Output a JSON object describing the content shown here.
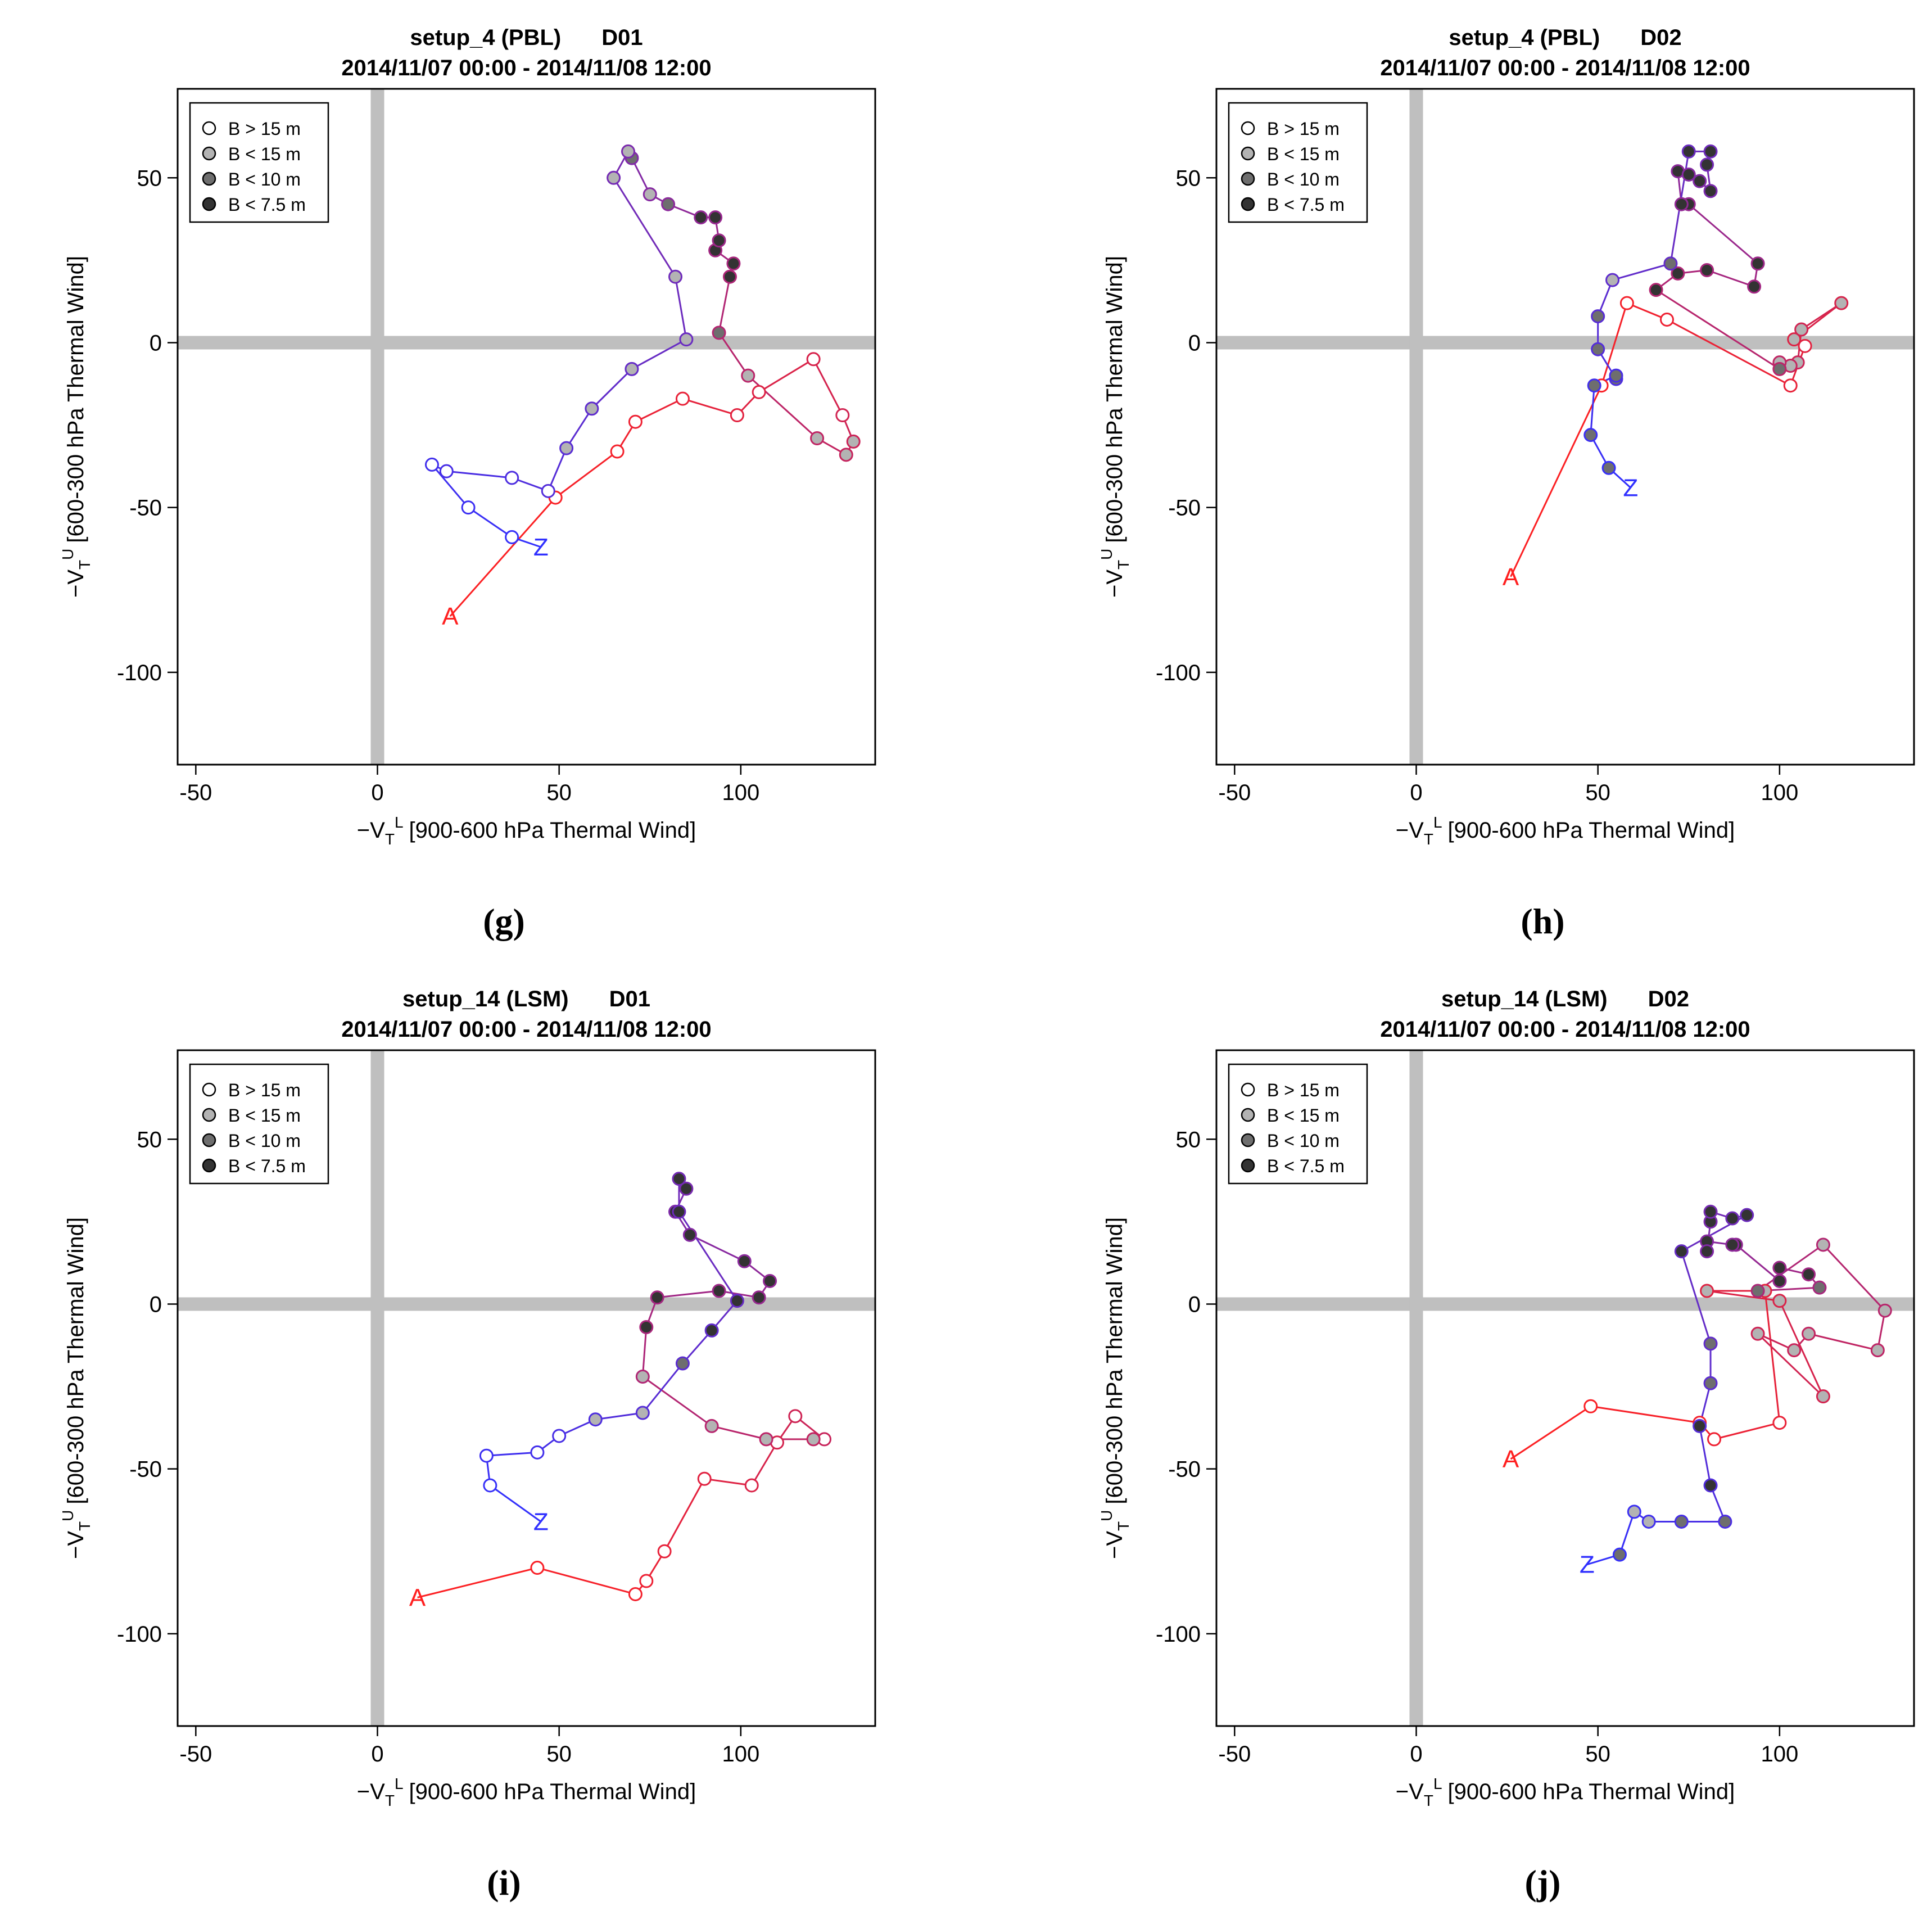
{
  "legend": {
    "entries": [
      {
        "label": "B > 15 m",
        "fill": "#ffffff"
      },
      {
        "label": "B < 15 m",
        "fill": "#b3b3b3"
      },
      {
        "label": "B < 10 m",
        "fill": "#6e6e6e"
      },
      {
        "label": "B < 7.5 m",
        "fill": "#333333"
      }
    ]
  },
  "colors": {
    "start": "#ff2020",
    "end": "#3030ff",
    "crosshair": "#bfbfbf"
  },
  "chart_data": [
    {
      "type": "line",
      "panel_label": "(g)",
      "title_setup": "setup_4 (PBL)",
      "title_domain": "D01",
      "subtitle": "2014/11/07 00:00 - 2014/11/08 12:00",
      "xlabel": "[900-600 hPa Thermal Wind]",
      "ylabel": "[600-300 hPa Thermal Wind]",
      "xlim": [
        -55,
        137
      ],
      "ylim": [
        -128,
        77
      ],
      "xticks": [
        -50,
        0,
        50,
        100
      ],
      "xtick_labels": [
        "-50",
        "0",
        "50",
        "100"
      ],
      "yticks": [
        -100,
        -50,
        0,
        50
      ],
      "ytick_labels": [
        "-100",
        "-50",
        "0",
        "50"
      ],
      "start_label": "A",
      "end_label": "Z",
      "points": [
        {
          "x": 20,
          "y": -83,
          "b": -1
        },
        {
          "x": 49,
          "y": -47,
          "b": 0
        },
        {
          "x": 66,
          "y": -33,
          "b": 0
        },
        {
          "x": 71,
          "y": -24,
          "b": 0
        },
        {
          "x": 84,
          "y": -17,
          "b": 0
        },
        {
          "x": 99,
          "y": -22,
          "b": 0
        },
        {
          "x": 105,
          "y": -15,
          "b": 0
        },
        {
          "x": 120,
          "y": -5,
          "b": 0
        },
        {
          "x": 128,
          "y": -22,
          "b": 0
        },
        {
          "x": 131,
          "y": -30,
          "b": 1
        },
        {
          "x": 129,
          "y": -34,
          "b": 1
        },
        {
          "x": 121,
          "y": -29,
          "b": 1
        },
        {
          "x": 102,
          "y": -10,
          "b": 1
        },
        {
          "x": 94,
          "y": 3,
          "b": 2
        },
        {
          "x": 97,
          "y": 20,
          "b": 3
        },
        {
          "x": 98,
          "y": 24,
          "b": 3
        },
        {
          "x": 93,
          "y": 28,
          "b": 3
        },
        {
          "x": 94,
          "y": 31,
          "b": 3
        },
        {
          "x": 93,
          "y": 38,
          "b": 3
        },
        {
          "x": 89,
          "y": 38,
          "b": 3
        },
        {
          "x": 80,
          "y": 42,
          "b": 2
        },
        {
          "x": 75,
          "y": 45,
          "b": 1
        },
        {
          "x": 70,
          "y": 56,
          "b": 2
        },
        {
          "x": 69,
          "y": 58,
          "b": 1
        },
        {
          "x": 65,
          "y": 50,
          "b": 1
        },
        {
          "x": 82,
          "y": 20,
          "b": 1
        },
        {
          "x": 85,
          "y": 1,
          "b": 1
        },
        {
          "x": 70,
          "y": -8,
          "b": 1
        },
        {
          "x": 59,
          "y": -20,
          "b": 1
        },
        {
          "x": 52,
          "y": -32,
          "b": 1
        },
        {
          "x": 47,
          "y": -45,
          "b": 0
        },
        {
          "x": 37,
          "y": -41,
          "b": 0
        },
        {
          "x": 19,
          "y": -39,
          "b": 0
        },
        {
          "x": 15,
          "y": -37,
          "b": 0
        },
        {
          "x": 25,
          "y": -50,
          "b": 0
        },
        {
          "x": 37,
          "y": -59,
          "b": 0
        },
        {
          "x": 45,
          "y": -62,
          "b": -1
        }
      ]
    },
    {
      "type": "line",
      "panel_label": "(h)",
      "title_setup": "setup_4 (PBL)",
      "title_domain": "D02",
      "subtitle": "2014/11/07 00:00 - 2014/11/08 12:00",
      "xlabel": "[900-600 hPa Thermal Wind]",
      "ylabel": "[600-300 hPa Thermal Wind]",
      "xlim": [
        -55,
        137
      ],
      "ylim": [
        -128,
        77
      ],
      "xticks": [
        -50,
        0,
        50,
        100
      ],
      "xtick_labels": [
        "-50",
        "0",
        "50",
        "100"
      ],
      "yticks": [
        -100,
        -50,
        0,
        50
      ],
      "ytick_labels": [
        "-100",
        "-50",
        "0",
        "50"
      ],
      "start_label": "A",
      "end_label": "Z",
      "points": [
        {
          "x": 26,
          "y": -71,
          "b": -1
        },
        {
          "x": 51,
          "y": -13,
          "b": 0
        },
        {
          "x": 58,
          "y": 12,
          "b": 0
        },
        {
          "x": 69,
          "y": 7,
          "b": 0
        },
        {
          "x": 103,
          "y": -13,
          "b": 0
        },
        {
          "x": 107,
          "y": -1,
          "b": 0
        },
        {
          "x": 104,
          "y": 1,
          "b": 1
        },
        {
          "x": 117,
          "y": 12,
          "b": 1
        },
        {
          "x": 106,
          "y": 4,
          "b": 1
        },
        {
          "x": 105,
          "y": -6,
          "b": 1
        },
        {
          "x": 103,
          "y": -7,
          "b": 1
        },
        {
          "x": 100,
          "y": -6,
          "b": 1
        },
        {
          "x": 100,
          "y": -8,
          "b": 2
        },
        {
          "x": 66,
          "y": 16,
          "b": 3
        },
        {
          "x": 72,
          "y": 21,
          "b": 3
        },
        {
          "x": 80,
          "y": 22,
          "b": 3
        },
        {
          "x": 93,
          "y": 17,
          "b": 3
        },
        {
          "x": 94,
          "y": 24,
          "b": 3
        },
        {
          "x": 75,
          "y": 42,
          "b": 3
        },
        {
          "x": 73,
          "y": 42,
          "b": 3
        },
        {
          "x": 72,
          "y": 52,
          "b": 3
        },
        {
          "x": 75,
          "y": 51,
          "b": 3
        },
        {
          "x": 78,
          "y": 49,
          "b": 3
        },
        {
          "x": 81,
          "y": 46,
          "b": 3
        },
        {
          "x": 80,
          "y": 54,
          "b": 3
        },
        {
          "x": 81,
          "y": 58,
          "b": 3
        },
        {
          "x": 75,
          "y": 58,
          "b": 3
        },
        {
          "x": 70,
          "y": 24,
          "b": 2
        },
        {
          "x": 54,
          "y": 19,
          "b": 1
        },
        {
          "x": 50,
          "y": 8,
          "b": 2
        },
        {
          "x": 50,
          "y": -2,
          "b": 2
        },
        {
          "x": 55,
          "y": -11,
          "b": 2
        },
        {
          "x": 55,
          "y": -10,
          "b": 2
        },
        {
          "x": 49,
          "y": -13,
          "b": 2
        },
        {
          "x": 48,
          "y": -28,
          "b": 2
        },
        {
          "x": 53,
          "y": -38,
          "b": 2
        },
        {
          "x": 59,
          "y": -44,
          "b": -1
        }
      ]
    },
    {
      "type": "line",
      "panel_label": "(i)",
      "title_setup": "setup_14 (LSM)",
      "title_domain": "D01",
      "subtitle": "2014/11/07 00:00 - 2014/11/08 12:00",
      "xlabel": "[900-600 hPa Thermal Wind]",
      "ylabel": "[600-300 hPa Thermal Wind]",
      "xlim": [
        -55,
        137
      ],
      "ylim": [
        -128,
        77
      ],
      "xticks": [
        -50,
        0,
        50,
        100
      ],
      "xtick_labels": [
        "-50",
        "0",
        "50",
        "100"
      ],
      "yticks": [
        -100,
        -50,
        0,
        50
      ],
      "ytick_labels": [
        "-100",
        "-50",
        "0",
        "50"
      ],
      "start_label": "A",
      "end_label": "Z",
      "points": [
        {
          "x": 11,
          "y": -89,
          "b": -1
        },
        {
          "x": 44,
          "y": -80,
          "b": 0
        },
        {
          "x": 71,
          "y": -88,
          "b": 0
        },
        {
          "x": 74,
          "y": -84,
          "b": 0
        },
        {
          "x": 79,
          "y": -75,
          "b": 0
        },
        {
          "x": 90,
          "y": -53,
          "b": 0
        },
        {
          "x": 103,
          "y": -55,
          "b": 0
        },
        {
          "x": 110,
          "y": -42,
          "b": 0
        },
        {
          "x": 115,
          "y": -34,
          "b": 0
        },
        {
          "x": 123,
          "y": -41,
          "b": 0
        },
        {
          "x": 120,
          "y": -41,
          "b": 1
        },
        {
          "x": 107,
          "y": -41,
          "b": 1
        },
        {
          "x": 92,
          "y": -37,
          "b": 1
        },
        {
          "x": 73,
          "y": -22,
          "b": 1
        },
        {
          "x": 74,
          "y": -7,
          "b": 3
        },
        {
          "x": 77,
          "y": 2,
          "b": 3
        },
        {
          "x": 94,
          "y": 4,
          "b": 3
        },
        {
          "x": 105,
          "y": 2,
          "b": 3
        },
        {
          "x": 108,
          "y": 7,
          "b": 3
        },
        {
          "x": 101,
          "y": 13,
          "b": 3
        },
        {
          "x": 86,
          "y": 21,
          "b": 3
        },
        {
          "x": 82,
          "y": 28,
          "b": 3
        },
        {
          "x": 85,
          "y": 35,
          "b": 3
        },
        {
          "x": 83,
          "y": 38,
          "b": 3
        },
        {
          "x": 83,
          "y": 28,
          "b": 3
        },
        {
          "x": 99,
          "y": 1,
          "b": 3
        },
        {
          "x": 92,
          "y": -8,
          "b": 3
        },
        {
          "x": 84,
          "y": -18,
          "b": 2
        },
        {
          "x": 73,
          "y": -33,
          "b": 1
        },
        {
          "x": 60,
          "y": -35,
          "b": 1
        },
        {
          "x": 50,
          "y": -40,
          "b": 0
        },
        {
          "x": 44,
          "y": -45,
          "b": 0
        },
        {
          "x": 30,
          "y": -46,
          "b": 0
        },
        {
          "x": 31,
          "y": -55,
          "b": 0
        },
        {
          "x": 45,
          "y": -66,
          "b": -1
        }
      ]
    },
    {
      "type": "line",
      "panel_label": "(j)",
      "title_setup": "setup_14 (LSM)",
      "title_domain": "D02",
      "subtitle": "2014/11/07 00:00 - 2014/11/08 12:00",
      "xlabel": "[900-600 hPa Thermal Wind]",
      "ylabel": "[600-300 hPa Thermal Wind]",
      "xlim": [
        -55,
        137
      ],
      "ylim": [
        -128,
        77
      ],
      "xticks": [
        -50,
        0,
        50,
        100
      ],
      "xtick_labels": [
        "-50",
        "0",
        "50",
        "100"
      ],
      "yticks": [
        -100,
        -50,
        0,
        50
      ],
      "ytick_labels": [
        "-100",
        "-50",
        "0",
        "50"
      ],
      "start_label": "A",
      "end_label": "Z",
      "points": [
        {
          "x": 26,
          "y": -47,
          "b": -1
        },
        {
          "x": 48,
          "y": -31,
          "b": 0
        },
        {
          "x": 78,
          "y": -36,
          "b": 0
        },
        {
          "x": 82,
          "y": -41,
          "b": 0
        },
        {
          "x": 100,
          "y": -36,
          "b": 0
        },
        {
          "x": 96,
          "y": 4,
          "b": 1
        },
        {
          "x": 80,
          "y": 4,
          "b": 1
        },
        {
          "x": 100,
          "y": 1,
          "b": 1
        },
        {
          "x": 112,
          "y": -28,
          "b": 1
        },
        {
          "x": 94,
          "y": -9,
          "b": 1
        },
        {
          "x": 104,
          "y": -14,
          "b": 1
        },
        {
          "x": 108,
          "y": -9,
          "b": 1
        },
        {
          "x": 127,
          "y": -14,
          "b": 1
        },
        {
          "x": 129,
          "y": -2,
          "b": 1
        },
        {
          "x": 112,
          "y": 18,
          "b": 1
        },
        {
          "x": 94,
          "y": 4,
          "b": 2
        },
        {
          "x": 111,
          "y": 5,
          "b": 2
        },
        {
          "x": 108,
          "y": 9,
          "b": 3
        },
        {
          "x": 100,
          "y": 11,
          "b": 3
        },
        {
          "x": 100,
          "y": 7,
          "b": 3
        },
        {
          "x": 88,
          "y": 18,
          "b": 3
        },
        {
          "x": 87,
          "y": 18,
          "b": 3
        },
        {
          "x": 80,
          "y": 19,
          "b": 3
        },
        {
          "x": 80,
          "y": 16,
          "b": 3
        },
        {
          "x": 81,
          "y": 25,
          "b": 3
        },
        {
          "x": 81,
          "y": 28,
          "b": 3
        },
        {
          "x": 87,
          "y": 26,
          "b": 3
        },
        {
          "x": 91,
          "y": 27,
          "b": 3
        },
        {
          "x": 73,
          "y": 16,
          "b": 3
        },
        {
          "x": 81,
          "y": -12,
          "b": 2
        },
        {
          "x": 81,
          "y": -24,
          "b": 2
        },
        {
          "x": 78,
          "y": -37,
          "b": 3
        },
        {
          "x": 81,
          "y": -55,
          "b": 3
        },
        {
          "x": 85,
          "y": -66,
          "b": 2
        },
        {
          "x": 73,
          "y": -66,
          "b": 2
        },
        {
          "x": 64,
          "y": -66,
          "b": 1
        },
        {
          "x": 60,
          "y": -63,
          "b": 1
        },
        {
          "x": 56,
          "y": -76,
          "b": 2
        },
        {
          "x": 47,
          "y": -79,
          "b": -1
        }
      ]
    }
  ]
}
